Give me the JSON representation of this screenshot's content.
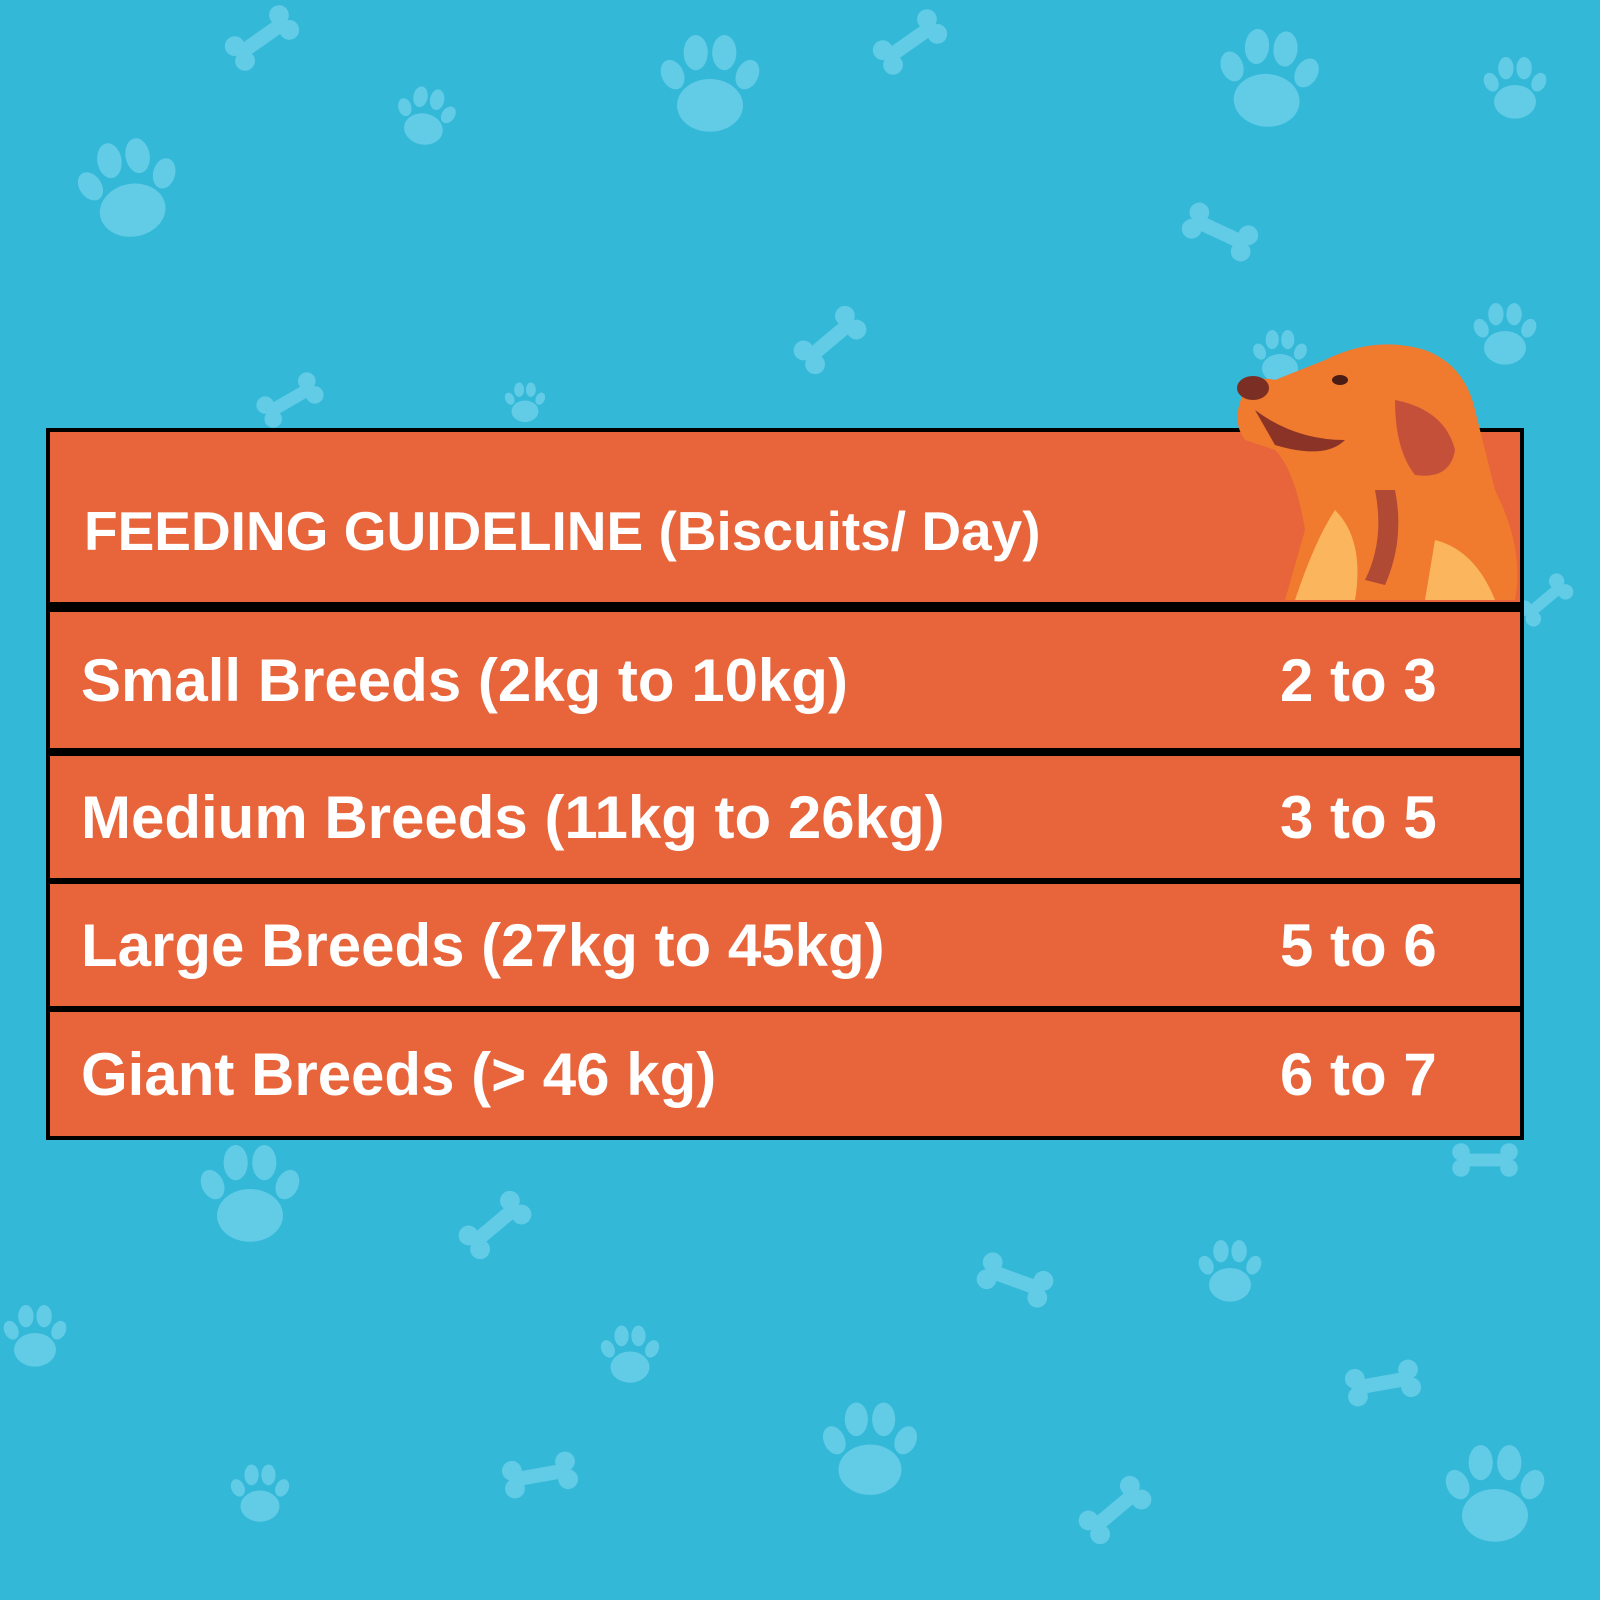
{
  "colors": {
    "background": "#33b8d8",
    "pattern": "#62cbe6",
    "table_fill": "#e8643a",
    "border": "#000000",
    "text": "#ffffff"
  },
  "background_icons": [
    "paw-print-icon",
    "dog-bone-icon"
  ],
  "illustration": "golden-retriever-dog",
  "header": {
    "title": "FEEDING GUIDELINE (Biscuits/ Day)"
  },
  "rows": [
    {
      "label": "Small Breeds (2kg to 10kg)",
      "value": "2 to 3"
    },
    {
      "label": "Medium Breeds (11kg to 26kg)",
      "value": "3 to 5"
    },
    {
      "label": "Large Breeds (27kg to 45kg)",
      "value": "5 to 6"
    },
    {
      "label": "Giant Breeds (> 46 kg)",
      "value": "6 to 7"
    }
  ]
}
